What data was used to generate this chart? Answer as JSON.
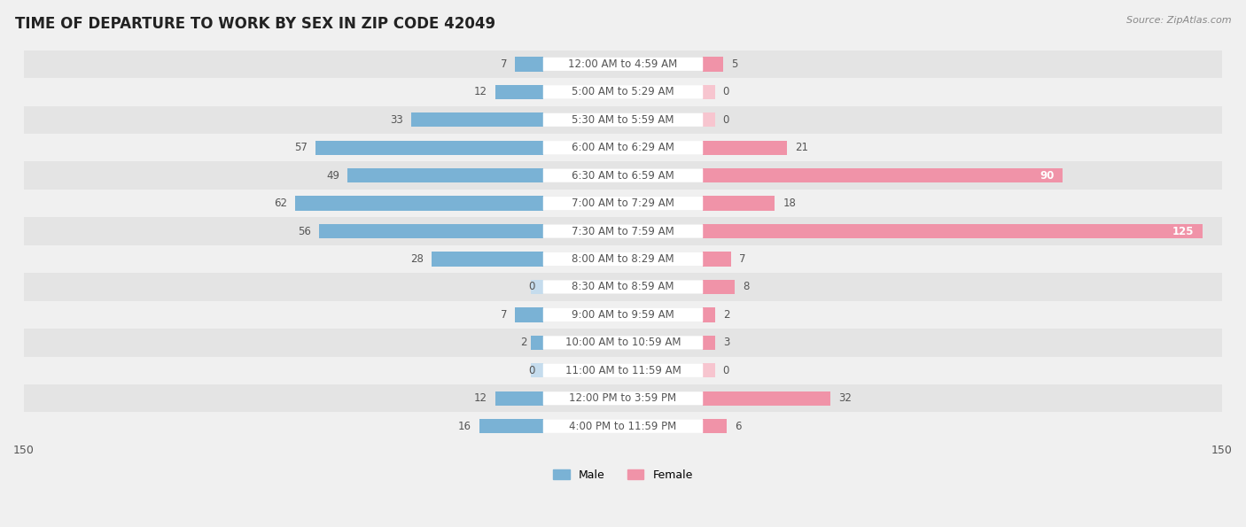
{
  "title": "TIME OF DEPARTURE TO WORK BY SEX IN ZIP CODE 42049",
  "source": "Source: ZipAtlas.com",
  "categories": [
    "12:00 AM to 4:59 AM",
    "5:00 AM to 5:29 AM",
    "5:30 AM to 5:59 AM",
    "6:00 AM to 6:29 AM",
    "6:30 AM to 6:59 AM",
    "7:00 AM to 7:29 AM",
    "7:30 AM to 7:59 AM",
    "8:00 AM to 8:29 AM",
    "8:30 AM to 8:59 AM",
    "9:00 AM to 9:59 AM",
    "10:00 AM to 10:59 AM",
    "11:00 AM to 11:59 AM",
    "12:00 PM to 3:59 PM",
    "4:00 PM to 11:59 PM"
  ],
  "male_values": [
    7,
    12,
    33,
    57,
    49,
    62,
    56,
    28,
    0,
    7,
    2,
    0,
    12,
    16
  ],
  "female_values": [
    5,
    0,
    0,
    21,
    90,
    18,
    125,
    7,
    8,
    2,
    3,
    0,
    32,
    6
  ],
  "male_color": "#7ab2d5",
  "female_color": "#f093a8",
  "male_color_zero": "#c5dced",
  "female_color_zero": "#f7c5cf",
  "axis_max": 150,
  "background_color": "#f0f0f0",
  "row_color_dark": "#e4e4e4",
  "row_color_light": "#f0f0f0",
  "title_fontsize": 12,
  "label_fontsize": 8.5,
  "tick_fontsize": 9,
  "center_label_color": "#555555",
  "value_label_color": "#555555",
  "label_box_color": "#ffffff"
}
